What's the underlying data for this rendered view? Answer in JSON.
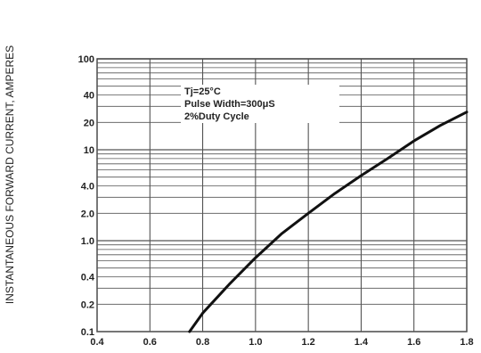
{
  "chart_data": {
    "type": "line",
    "title": "",
    "xlabel": "",
    "ylabel": "INSTANTANEOUS FORWARD CURRENT, AMPERES",
    "xlim": [
      0.4,
      1.8
    ],
    "ylim": [
      0.1,
      100
    ],
    "y_scale": "log",
    "grid": true,
    "x_ticks": [
      "0.4",
      "0.6",
      "0.8",
      "1.0",
      "1.2",
      "1.4",
      "1.6",
      "1.8"
    ],
    "x_tick_values": [
      0.4,
      0.6,
      0.8,
      1.0,
      1.2,
      1.4,
      1.6,
      1.8
    ],
    "y_ticks": [
      "0.1",
      "0.2",
      "0.4",
      "1.0",
      "2.0",
      "4.0",
      "10",
      "20",
      "40",
      "100"
    ],
    "y_tick_values": [
      0.1,
      0.2,
      0.4,
      1.0,
      2.0,
      4.0,
      10,
      20,
      40,
      100
    ],
    "annotations": [
      "Tj=25°C",
      "Pulse Width=300μS",
      "2%Duty Cycle"
    ],
    "series": [
      {
        "x": [
          0.75,
          0.8,
          0.9,
          1.0,
          1.1,
          1.2,
          1.3,
          1.4,
          1.5,
          1.6,
          1.7,
          1.8
        ],
        "y": [
          0.1,
          0.16,
          0.33,
          0.65,
          1.2,
          2.0,
          3.3,
          5.2,
          8.0,
          12.5,
          18.5,
          26.0
        ]
      }
    ]
  }
}
